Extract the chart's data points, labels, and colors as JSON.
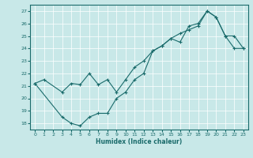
{
  "xlabel": "Humidex (Indice chaleur)",
  "xlim": [
    -0.5,
    23.5
  ],
  "ylim": [
    17.5,
    27.5
  ],
  "yticks": [
    18,
    19,
    20,
    21,
    22,
    23,
    24,
    25,
    26,
    27
  ],
  "xticks": [
    0,
    1,
    2,
    3,
    4,
    5,
    6,
    7,
    8,
    9,
    10,
    11,
    12,
    13,
    14,
    15,
    16,
    17,
    18,
    19,
    20,
    21,
    22,
    23
  ],
  "bg_color": "#c8e8e8",
  "line_color": "#1a6b6b",
  "line1_x": [
    0,
    1,
    3,
    4,
    5,
    6,
    7,
    8,
    9,
    10,
    11,
    12,
    13,
    14,
    15,
    16,
    17,
    18,
    19,
    20,
    21,
    22,
    23
  ],
  "line1_y": [
    21.2,
    21.5,
    20.5,
    21.2,
    21.1,
    22.0,
    21.1,
    21.5,
    20.5,
    21.5,
    22.5,
    23.0,
    23.8,
    24.2,
    24.8,
    25.2,
    25.5,
    25.8,
    27.0,
    26.5,
    25.0,
    25.0,
    24.0
  ],
  "line2_x": [
    0,
    3,
    4,
    5,
    6,
    7,
    8,
    9,
    10,
    11,
    12,
    13,
    14,
    15,
    16,
    17,
    18,
    19,
    20,
    21,
    22,
    23
  ],
  "line2_y": [
    21.2,
    18.5,
    18.0,
    17.8,
    18.5,
    18.8,
    18.8,
    20.0,
    20.5,
    21.5,
    22.0,
    23.8,
    24.2,
    24.8,
    24.5,
    25.8,
    26.0,
    27.0,
    26.5,
    25.0,
    24.0,
    24.0
  ]
}
